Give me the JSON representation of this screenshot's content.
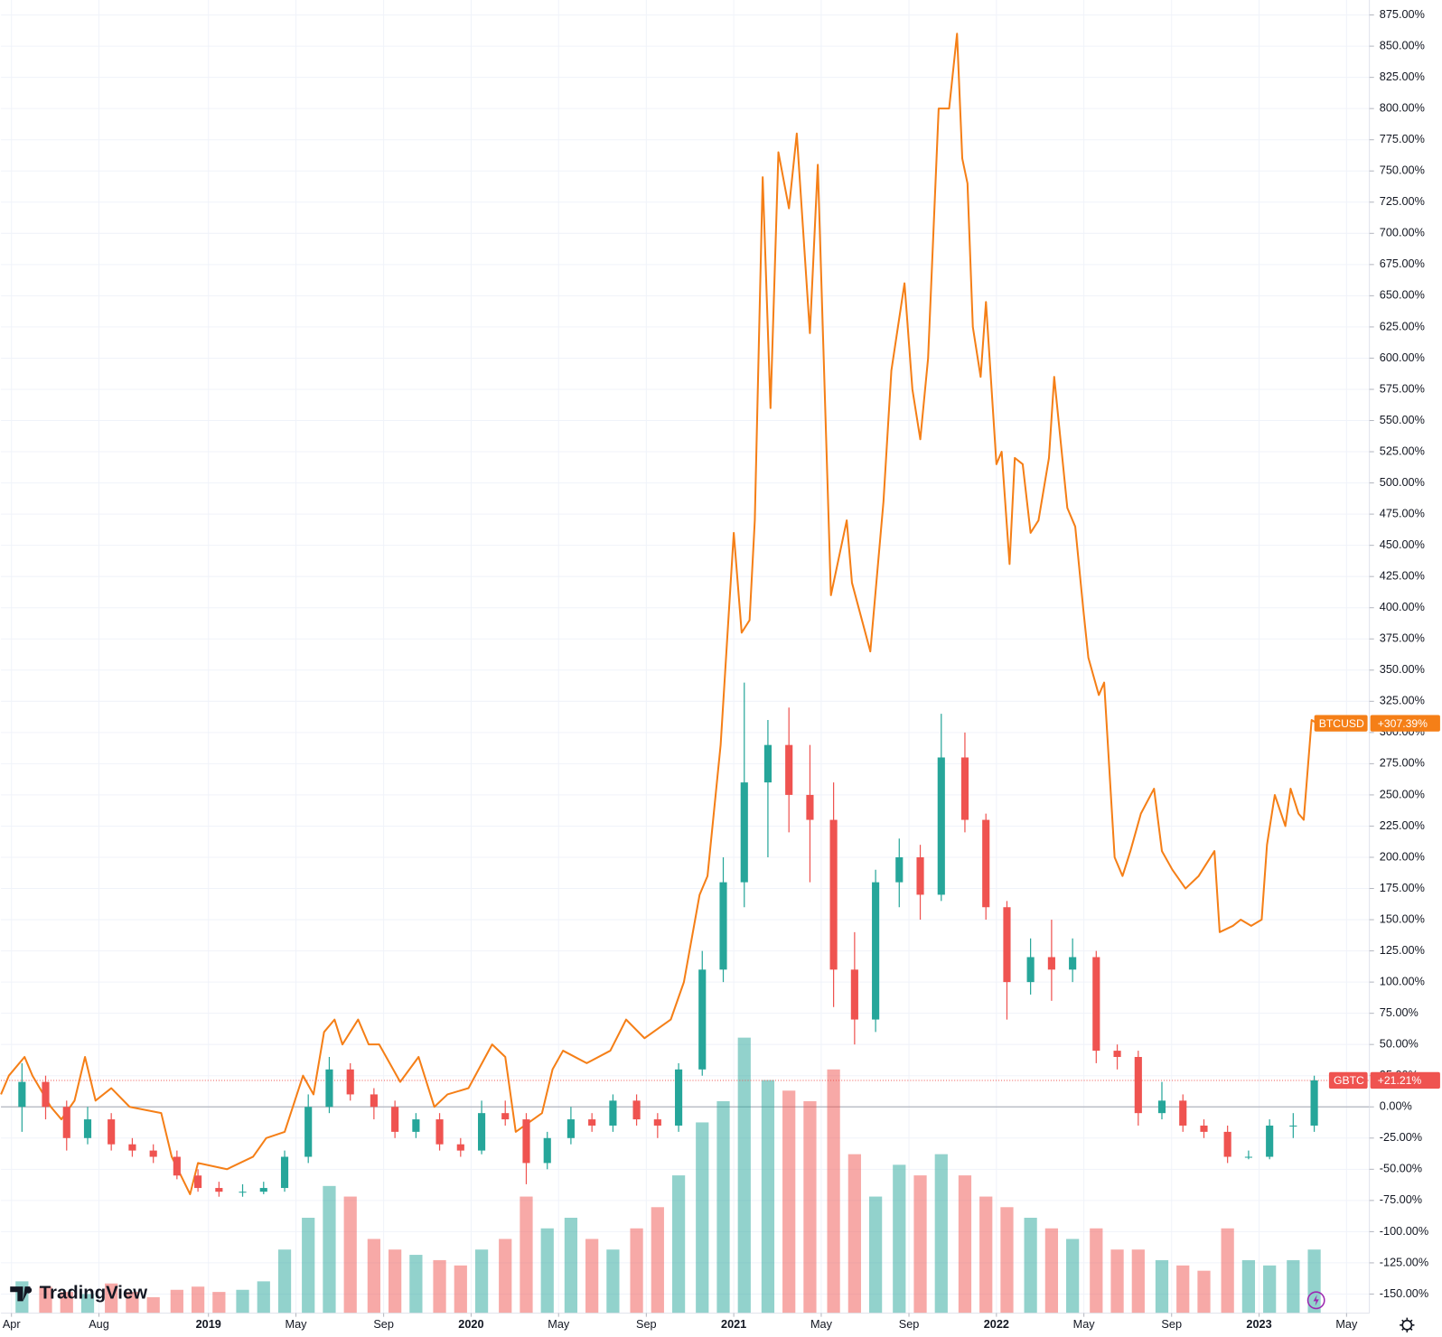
{
  "chart_data": {
    "type": "combo",
    "branding": "TradingView",
    "xlim": [
      2018.21,
      2023.42
    ],
    "ylim": [
      -180,
      887
    ],
    "grid": true,
    "xticks": [
      {
        "value": 2018.25,
        "label": "Apr"
      },
      {
        "value": 2018.583,
        "label": "Aug"
      },
      {
        "value": 2019,
        "label": "2019"
      },
      {
        "value": 2019.333,
        "label": "May"
      },
      {
        "value": 2019.667,
        "label": "Sep"
      },
      {
        "value": 2020,
        "label": "2020"
      },
      {
        "value": 2020.333,
        "label": "May"
      },
      {
        "value": 2020.667,
        "label": "Sep"
      },
      {
        "value": 2021,
        "label": "2021"
      },
      {
        "value": 2021.333,
        "label": "May"
      },
      {
        "value": 2021.667,
        "label": "Sep"
      },
      {
        "value": 2022,
        "label": "2022"
      },
      {
        "value": 2022.333,
        "label": "May"
      },
      {
        "value": 2022.667,
        "label": "Sep"
      },
      {
        "value": 2023,
        "label": "2023"
      },
      {
        "value": 2023.333,
        "label": "May"
      }
    ],
    "yticks": [
      {
        "value": -150,
        "label": "-150.00%"
      },
      {
        "value": -125,
        "label": "-125.00%"
      },
      {
        "value": -100,
        "label": "-100.00%"
      },
      {
        "value": -75,
        "label": "-75.00%"
      },
      {
        "value": -50,
        "label": "-50.00%"
      },
      {
        "value": -25,
        "label": "-25.00%"
      },
      {
        "value": 0,
        "label": "0.00%"
      },
      {
        "value": 25,
        "label": "25.00%"
      },
      {
        "value": 50,
        "label": "50.00%"
      },
      {
        "value": 75,
        "label": "75.00%"
      },
      {
        "value": 100,
        "label": "100.00%"
      },
      {
        "value": 125,
        "label": "125.00%"
      },
      {
        "value": 150,
        "label": "150.00%"
      },
      {
        "value": 175,
        "label": "175.00%"
      },
      {
        "value": 200,
        "label": "200.00%"
      },
      {
        "value": 225,
        "label": "225.00%"
      },
      {
        "value": 250,
        "label": "250.00%"
      },
      {
        "value": 275,
        "label": "275.00%"
      },
      {
        "value": 300,
        "label": "300.00%"
      },
      {
        "value": 325,
        "label": "325.00%"
      },
      {
        "value": 350,
        "label": "350.00%"
      },
      {
        "value": 375,
        "label": "375.00%"
      },
      {
        "value": 400,
        "label": "400.00%"
      },
      {
        "value": 425,
        "label": "425.00%"
      },
      {
        "value": 450,
        "label": "450.00%"
      },
      {
        "value": 475,
        "label": "475.00%"
      },
      {
        "value": 500,
        "label": "500.00%"
      },
      {
        "value": 525,
        "label": "525.00%"
      },
      {
        "value": 550,
        "label": "550.00%"
      },
      {
        "value": 575,
        "label": "575.00%"
      },
      {
        "value": 600,
        "label": "600.00%"
      },
      {
        "value": 625,
        "label": "625.00%"
      },
      {
        "value": 650,
        "label": "650.00%"
      },
      {
        "value": 675,
        "label": "675.00%"
      },
      {
        "value": 700,
        "label": "700.00%"
      },
      {
        "value": 725,
        "label": "725.00%"
      },
      {
        "value": 750,
        "label": "750.00%"
      },
      {
        "value": 775,
        "label": "775.00%"
      },
      {
        "value": 800,
        "label": "800.00%"
      },
      {
        "value": 825,
        "label": "825.00%"
      },
      {
        "value": 850,
        "label": "850.00%"
      },
      {
        "value": 875,
        "label": "875.00%"
      }
    ],
    "series": [
      {
        "name": "BTCUSD",
        "type": "line",
        "color": "#f57f17",
        "last_label": "+307.39%",
        "x": [
          2018.21,
          2018.24,
          2018.3,
          2018.33,
          2018.4,
          2018.44,
          2018.49,
          2018.53,
          2018.57,
          2018.63,
          2018.7,
          2018.82,
          2018.86,
          2018.93,
          2018.96,
          2019.07,
          2019.17,
          2019.22,
          2019.29,
          2019.36,
          2019.4,
          2019.44,
          2019.48,
          2019.51,
          2019.57,
          2019.61,
          2019.65,
          2019.73,
          2019.8,
          2019.86,
          2019.91,
          2019.99,
          2020.08,
          2020.13,
          2020.17,
          2020.27,
          2020.31,
          2020.35,
          2020.44,
          2020.53,
          2020.59,
          2020.66,
          2020.76,
          2020.81,
          2020.87,
          2020.9,
          2020.95,
          2021.0,
          2021.03,
          2021.06,
          2021.08,
          2021.11,
          2021.14,
          2021.17,
          2021.21,
          2021.24,
          2021.29,
          2021.32,
          2021.37,
          2021.43,
          2021.45,
          2021.52,
          2021.57,
          2021.6,
          2021.65,
          2021.68,
          2021.71,
          2021.74,
          2021.78,
          2021.82,
          2021.85,
          2021.87,
          2021.89,
          2021.91,
          2021.94,
          2021.96,
          2022.0,
          2022.02,
          2022.05,
          2022.07,
          2022.1,
          2022.13,
          2022.16,
          2022.2,
          2022.22,
          2022.27,
          2022.3,
          2022.33,
          2022.35,
          2022.39,
          2022.41,
          2022.45,
          2022.48,
          2022.51,
          2022.55,
          2022.6,
          2022.63,
          2022.67,
          2022.72,
          2022.77,
          2022.83,
          2022.85,
          2022.9,
          2022.93,
          2022.97,
          2023.01,
          2023.03,
          2023.06,
          2023.1,
          2023.12,
          2023.15,
          2023.17,
          2023.2,
          2023.22
        ],
        "values": [
          10,
          25,
          40,
          25,
          0,
          -10,
          5,
          40,
          5,
          15,
          0,
          -5,
          -40,
          -70,
          -45,
          -50,
          -40,
          -25,
          -20,
          25,
          10,
          60,
          70,
          50,
          70,
          50,
          50,
          20,
          40,
          0,
          10,
          15,
          50,
          40,
          -20,
          -5,
          30,
          45,
          35,
          45,
          70,
          55,
          70,
          100,
          170,
          185,
          290,
          460,
          380,
          390,
          470,
          745,
          560,
          765,
          720,
          780,
          620,
          755,
          410,
          470,
          420,
          365,
          485,
          590,
          660,
          575,
          535,
          600,
          800,
          800,
          860,
          760,
          740,
          625,
          585,
          645,
          515,
          525,
          435,
          520,
          515,
          460,
          470,
          520,
          585,
          480,
          465,
          400,
          360,
          330,
          340,
          200,
          185,
          205,
          235,
          255,
          205,
          190,
          175,
          185,
          205,
          140,
          145,
          150,
          145,
          150,
          210,
          250,
          225,
          255,
          235,
          230,
          310,
          307.39
        ]
      },
      {
        "name": "GBTC",
        "type": "candlestick",
        "up_color": "#26a69a",
        "down_color": "#ef5350",
        "last_label": "+21.21%",
        "x": [
          2018.29,
          2018.38,
          2018.46,
          2018.54,
          2018.63,
          2018.71,
          2018.79,
          2018.88,
          2018.96,
          2019.04,
          2019.13,
          2019.21,
          2019.29,
          2019.38,
          2019.46,
          2019.54,
          2019.63,
          2019.71,
          2019.79,
          2019.88,
          2019.96,
          2020.04,
          2020.13,
          2020.21,
          2020.29,
          2020.38,
          2020.46,
          2020.54,
          2020.63,
          2020.71,
          2020.79,
          2020.88,
          2020.96,
          2021.04,
          2021.13,
          2021.21,
          2021.29,
          2021.38,
          2021.46,
          2021.54,
          2021.63,
          2021.71,
          2021.79,
          2021.88,
          2021.96,
          2022.04,
          2022.13,
          2022.21,
          2022.29,
          2022.38,
          2022.46,
          2022.54,
          2022.63,
          2022.71,
          2022.79,
          2022.88,
          2022.96,
          2023.04,
          2023.13,
          2023.21
        ],
        "open": [
          0,
          20,
          0,
          -25,
          -10,
          -30,
          -35,
          -40,
          -55,
          -65,
          -68,
          -68,
          -65,
          -40,
          0,
          30,
          10,
          0,
          -20,
          -10,
          -30,
          -35,
          -5,
          -10,
          -45,
          -25,
          -10,
          -15,
          5,
          -10,
          -15,
          30,
          110,
          180,
          260,
          290,
          250,
          230,
          110,
          70,
          180,
          200,
          170,
          280,
          230,
          160,
          100,
          120,
          110,
          120,
          45,
          40,
          -5,
          5,
          -15,
          -20,
          -40,
          -40,
          -15,
          -15
        ],
        "high": [
          35,
          25,
          5,
          0,
          -5,
          -25,
          -30,
          -35,
          -50,
          -60,
          -62,
          -60,
          -35,
          10,
          40,
          35,
          15,
          5,
          -5,
          -5,
          -25,
          5,
          5,
          -5,
          -20,
          0,
          -5,
          10,
          10,
          -5,
          35,
          125,
          200,
          340,
          310,
          320,
          290,
          260,
          140,
          190,
          215,
          210,
          315,
          300,
          235,
          165,
          135,
          150,
          135,
          125,
          50,
          45,
          20,
          10,
          -10,
          -15,
          -35,
          -10,
          -5,
          25
        ],
        "low": [
          -20,
          -10,
          -35,
          -30,
          -35,
          -40,
          -45,
          -58,
          -68,
          -72,
          -72,
          -70,
          -68,
          -45,
          -5,
          5,
          -10,
          -25,
          -25,
          -35,
          -40,
          -38,
          -15,
          -62,
          -50,
          -30,
          -20,
          -20,
          -15,
          -25,
          -20,
          25,
          100,
          160,
          200,
          220,
          180,
          80,
          50,
          60,
          160,
          150,
          165,
          220,
          150,
          70,
          90,
          85,
          100,
          35,
          30,
          -15,
          -10,
          -20,
          -25,
          -45,
          -42,
          -42,
          -25,
          -20
        ],
        "close": [
          20,
          0,
          -25,
          -10,
          -30,
          -35,
          -40,
          -55,
          -65,
          -68,
          -68,
          -65,
          -40,
          0,
          30,
          10,
          0,
          -20,
          -10,
          -30,
          -35,
          -5,
          -10,
          -45,
          -25,
          -10,
          -15,
          5,
          -10,
          -15,
          30,
          110,
          180,
          260,
          290,
          250,
          230,
          110,
          70,
          180,
          200,
          170,
          280,
          230,
          160,
          100,
          120,
          110,
          120,
          45,
          40,
          -5,
          5,
          -15,
          -20,
          -40,
          -40,
          -15,
          -15,
          21.21
        ],
        "volume": [
          30,
          25,
          20,
          18,
          28,
          20,
          15,
          22,
          25,
          20,
          22,
          30,
          60,
          90,
          120,
          110,
          70,
          60,
          55,
          50,
          45,
          60,
          70,
          110,
          80,
          90,
          70,
          60,
          80,
          100,
          130,
          180,
          200,
          260,
          220,
          210,
          200,
          230,
          150,
          110,
          140,
          130,
          150,
          130,
          110,
          100,
          90,
          80,
          70,
          80,
          60,
          60,
          50,
          45,
          40,
          80,
          50,
          45,
          50,
          60
        ]
      }
    ]
  }
}
